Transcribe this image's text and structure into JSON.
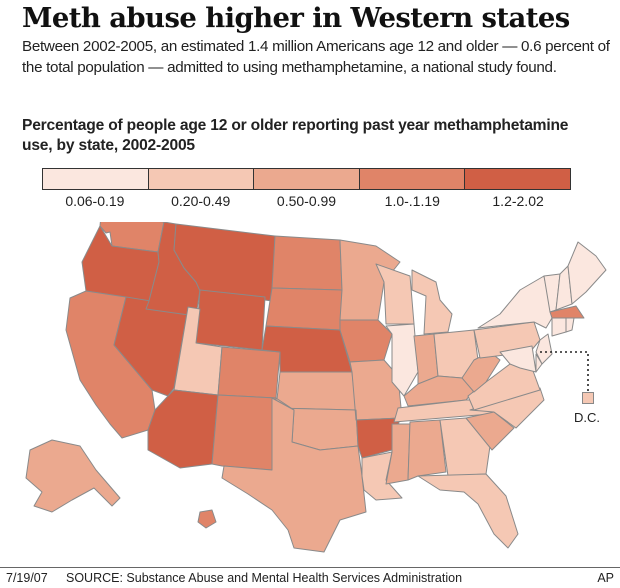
{
  "title": "Meth abuse higher in Western states",
  "intro": "Between 2002-2005, an estimated 1.4 million Americans age 12 and older — 0.6 percent of the total population — admitted to using methamphetamine, a national study found.",
  "legend_title": "Percentage of people age 12 or older reporting past year methamphetamine use, by state, 2002-2005",
  "legend": [
    {
      "label": "0.06-0.19",
      "color": "#fbe7df"
    },
    {
      "label": "0.20-0.49",
      "color": "#f5c8b4"
    },
    {
      "label": "0.50-0.99",
      "color": "#eba98f"
    },
    {
      "label": "1.0-.1.19",
      "color": "#e08468"
    },
    {
      "label": "1.2-2.02",
      "color": "#d05f45"
    }
  ],
  "dc_label": "D.C.",
  "footer": {
    "date": "7/19/07",
    "source": "SOURCE: Substance Abuse and Mental Health Services Administration",
    "credit": "AP"
  },
  "map_regions": [
    {
      "id": "WA",
      "cls": 3
    },
    {
      "id": "OR",
      "cls": 4
    },
    {
      "id": "CA",
      "cls": 3
    },
    {
      "id": "NV",
      "cls": 4
    },
    {
      "id": "ID",
      "cls": 4
    },
    {
      "id": "MT",
      "cls": 4
    },
    {
      "id": "WY",
      "cls": 4
    },
    {
      "id": "UT",
      "cls": 1
    },
    {
      "id": "AZ",
      "cls": 4
    },
    {
      "id": "CO",
      "cls": 3
    },
    {
      "id": "NM",
      "cls": 3
    },
    {
      "id": "ND",
      "cls": 3
    },
    {
      "id": "SD",
      "cls": 3
    },
    {
      "id": "NE",
      "cls": 4
    },
    {
      "id": "KS",
      "cls": 2
    },
    {
      "id": "OK",
      "cls": 2
    },
    {
      "id": "TX",
      "cls": 2
    },
    {
      "id": "MN",
      "cls": 2
    },
    {
      "id": "IA",
      "cls": 3
    },
    {
      "id": "MO",
      "cls": 2
    },
    {
      "id": "AR",
      "cls": 4
    },
    {
      "id": "LA",
      "cls": 1
    },
    {
      "id": "WI",
      "cls": 1
    },
    {
      "id": "IL",
      "cls": 0
    },
    {
      "id": "MI",
      "cls": 1
    },
    {
      "id": "IN",
      "cls": 2
    },
    {
      "id": "OH",
      "cls": 1
    },
    {
      "id": "KY",
      "cls": 2
    },
    {
      "id": "TN",
      "cls": 1
    },
    {
      "id": "MS",
      "cls": 2
    },
    {
      "id": "AL",
      "cls": 2
    },
    {
      "id": "GA",
      "cls": 1
    },
    {
      "id": "FL",
      "cls": 1
    },
    {
      "id": "SC",
      "cls": 2
    },
    {
      "id": "NC",
      "cls": 1
    },
    {
      "id": "VA",
      "cls": 1
    },
    {
      "id": "WV",
      "cls": 2
    },
    {
      "id": "PA",
      "cls": 1
    },
    {
      "id": "NY",
      "cls": 0
    },
    {
      "id": "VT",
      "cls": 0
    },
    {
      "id": "NH",
      "cls": 0
    },
    {
      "id": "ME",
      "cls": 0
    },
    {
      "id": "MA",
      "cls": 3
    },
    {
      "id": "CT",
      "cls": 0
    },
    {
      "id": "RI",
      "cls": 0
    },
    {
      "id": "NJ",
      "cls": 0
    },
    {
      "id": "DE",
      "cls": 0
    },
    {
      "id": "MD",
      "cls": 0
    },
    {
      "id": "AK",
      "cls": 2
    },
    {
      "id": "HI",
      "cls": 3
    },
    {
      "id": "DC",
      "cls": 1
    }
  ]
}
